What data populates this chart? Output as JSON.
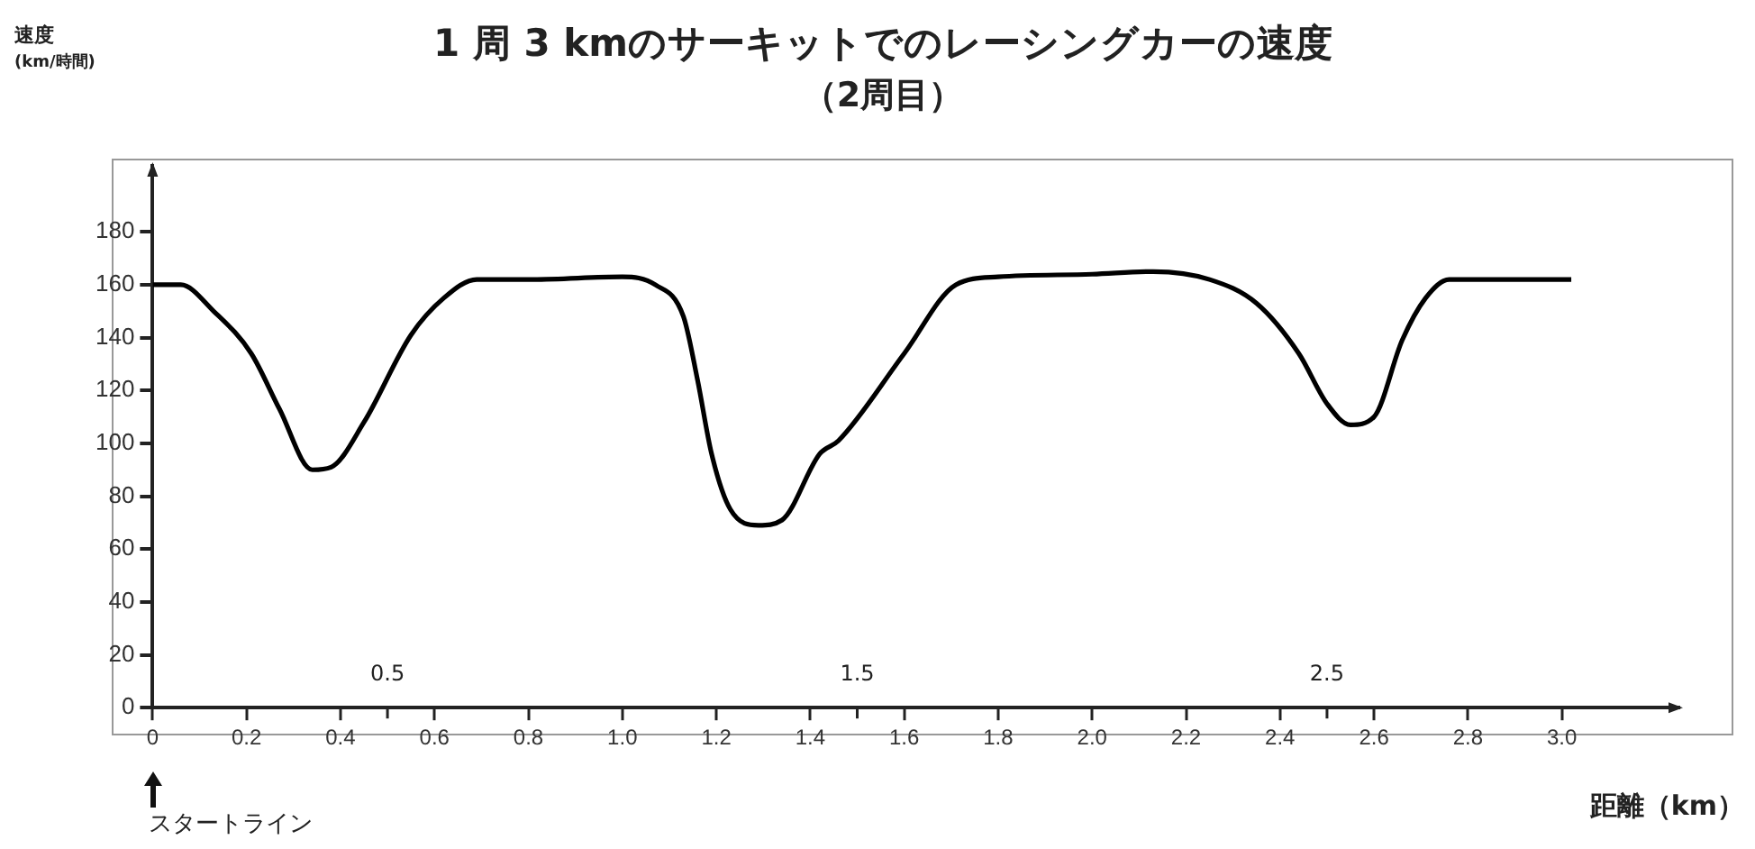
{
  "chart_data": {
    "type": "line",
    "title": "1 周 3 kmのサーキットでのレーシングカーの速度",
    "subtitle": "（2周目）",
    "ylabel": "速度 (km/時間)",
    "xlabel": "距離（km）",
    "x": [
      0,
      0.06,
      0.13,
      0.21,
      0.27,
      0.34,
      0.38,
      0.45,
      0.55,
      0.62,
      0.69,
      0.81,
      1.0,
      1.07,
      1.13,
      1.16,
      1.19,
      1.23,
      1.29,
      1.34,
      1.42,
      1.46,
      1.6,
      1.71,
      1.8,
      2.0,
      2.13,
      2.25,
      2.35,
      2.44,
      2.5,
      2.55,
      2.6,
      2.66,
      2.71,
      2.76,
      3.02
    ],
    "series": [
      {
        "color": "#000000",
        "values": [
          160,
          160,
          150,
          134,
          113,
          90,
          91,
          108,
          141,
          155,
          162,
          162,
          163,
          160,
          148,
          124,
          96,
          75,
          69,
          71,
          96,
          101,
          134,
          160,
          163,
          164,
          165,
          162,
          153,
          134,
          115,
          107,
          110,
          139,
          155,
          162,
          162
        ]
      }
    ],
    "xlim": [
      0,
      3.25
    ],
    "ylim": [
      0,
      205
    ],
    "xticks": [
      0,
      0.2,
      0.4,
      0.6,
      0.8,
      {
        "value": 1,
        "label": "1.0"
      },
      1.2,
      1.4,
      1.6,
      1.8,
      {
        "value": 2,
        "label": "2.0"
      },
      2.2,
      2.4,
      2.6,
      2.8,
      {
        "value": 3,
        "label": "3.0"
      }
    ],
    "yticks": [
      0,
      20,
      40,
      60,
      80,
      100,
      120,
      140,
      160,
      180
    ],
    "x2lim": [
      0,
      3.25
    ],
    "x2ticks": [
      0.5,
      1.5,
      2.5
    ],
    "annotations": [
      "スタートライン"
    ]
  }
}
